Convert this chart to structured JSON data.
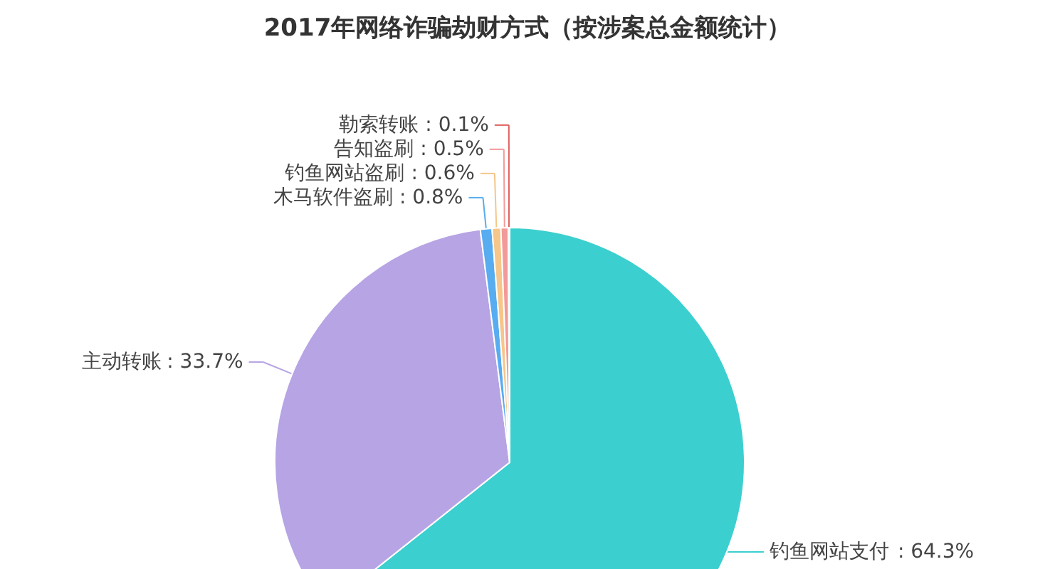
{
  "chart_data": {
    "type": "pie",
    "title": "2017年网络诈骗劫财方式（按涉案总金额统计）",
    "categories": [
      "钓鱼网站支付",
      "主动转账",
      "木马软件盗刷",
      "钓鱼网站盗刷",
      "告知盗刷",
      "勒索转账"
    ],
    "values": [
      64.3,
      33.7,
      0.8,
      0.6,
      0.5,
      0.1
    ],
    "colors": [
      "#3ccfcf",
      "#b6a4e4",
      "#58acf0",
      "#f6c68a",
      "#f29a9a",
      "#e0605e"
    ],
    "value_labels": [
      ": 64.3%",
      ": 33.7%",
      ": 0.8%",
      ": 0.6%",
      ": 0.5%",
      ": 0.1%"
    ]
  }
}
